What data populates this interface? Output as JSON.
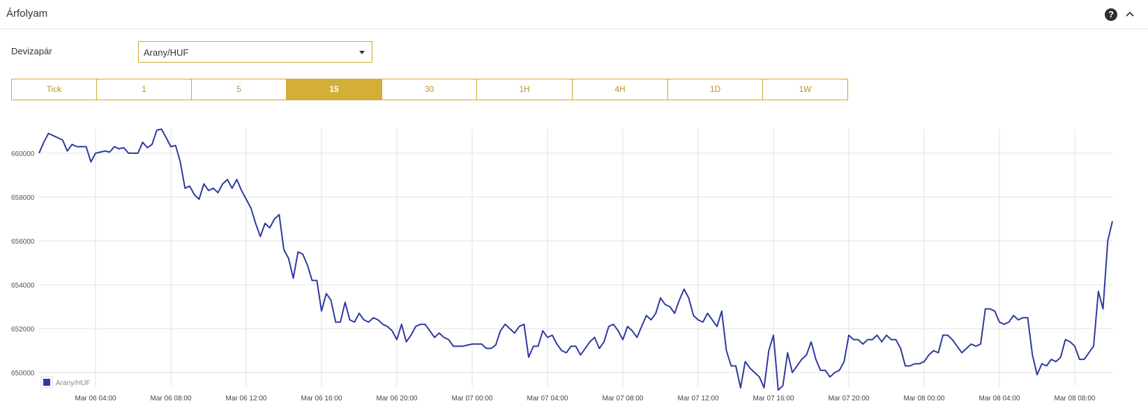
{
  "header": {
    "title": "Árfolyam",
    "help_icon": "help-circle-icon",
    "collapse_icon": "chevron-up-icon"
  },
  "form": {
    "pair_label": "Devizapár",
    "pair_value": "Arany/HUF"
  },
  "timeframes": {
    "items": [
      {
        "label": "Tick",
        "active": false
      },
      {
        "label": "1",
        "active": false
      },
      {
        "label": "5",
        "active": false
      },
      {
        "label": "15",
        "active": true
      },
      {
        "label": "30",
        "active": false
      },
      {
        "label": "1H",
        "active": false
      },
      {
        "label": "4H",
        "active": false
      },
      {
        "label": "1D",
        "active": false
      },
      {
        "label": "1W",
        "active": false
      }
    ]
  },
  "colors": {
    "accent": "#d4af37",
    "line": "#2e3a9e",
    "grid": "#e0e0e0"
  },
  "chart_data": {
    "type": "line",
    "title": "",
    "xlabel": "",
    "ylabel": "",
    "legend": {
      "entry": "Arany/HUF",
      "placement": "bottom-left"
    },
    "grid": true,
    "ylim": [
      649300,
      661400
    ],
    "y_ticks": [
      650000,
      652000,
      654000,
      656000,
      658000,
      660000
    ],
    "x_ticks": [
      {
        "label": "Mar 06 04:00",
        "t": 4
      },
      {
        "label": "Mar 06 08:00",
        "t": 8
      },
      {
        "label": "Mar 06 12:00",
        "t": 12
      },
      {
        "label": "Mar 06 16:00",
        "t": 16
      },
      {
        "label": "Mar 06 20:00",
        "t": 20
      },
      {
        "label": "Mar 07 00:00",
        "t": 24
      },
      {
        "label": "Mar 07 04:00",
        "t": 28
      },
      {
        "label": "Mar 07 08:00",
        "t": 32
      },
      {
        "label": "Mar 07 12:00",
        "t": 36
      },
      {
        "label": "Mar 07 16:00",
        "t": 40
      },
      {
        "label": "Mar 07 20:00",
        "t": 44
      },
      {
        "label": "Mar 08 00:00",
        "t": 48
      },
      {
        "label": "Mar 08 04:00",
        "t": 52
      },
      {
        "label": "Mar 08 08:00",
        "t": 56
      }
    ],
    "x_range": [
      1,
      58
    ],
    "series": [
      {
        "name": "Arany/HUF",
        "points": [
          [
            1.0,
            660000
          ],
          [
            1.25,
            660500
          ],
          [
            1.5,
            660900
          ],
          [
            1.75,
            660800
          ],
          [
            2.0,
            660700
          ],
          [
            2.25,
            660600
          ],
          [
            2.5,
            660100
          ],
          [
            2.75,
            660400
          ],
          [
            3.0,
            660300
          ],
          [
            3.5,
            660300
          ],
          [
            3.75,
            659600
          ],
          [
            4.0,
            660000
          ],
          [
            4.5,
            660100
          ],
          [
            4.75,
            660050
          ],
          [
            5.0,
            660300
          ],
          [
            5.25,
            660200
          ],
          [
            5.5,
            660250
          ],
          [
            5.75,
            660000
          ],
          [
            6.25,
            660000
          ],
          [
            6.5,
            660500
          ],
          [
            6.75,
            660250
          ],
          [
            7.0,
            660400
          ],
          [
            7.25,
            661050
          ],
          [
            7.5,
            661100
          ],
          [
            7.75,
            660700
          ],
          [
            8.0,
            660300
          ],
          [
            8.25,
            660350
          ],
          [
            8.5,
            659600
          ],
          [
            8.75,
            658400
          ],
          [
            9.0,
            658500
          ],
          [
            9.25,
            658100
          ],
          [
            9.5,
            657900
          ],
          [
            9.75,
            658600
          ],
          [
            10.0,
            658300
          ],
          [
            10.25,
            658400
          ],
          [
            10.5,
            658200
          ],
          [
            10.75,
            658600
          ],
          [
            11.0,
            658800
          ],
          [
            11.25,
            658400
          ],
          [
            11.5,
            658800
          ],
          [
            11.75,
            658300
          ],
          [
            12.0,
            657900
          ],
          [
            12.25,
            657500
          ],
          [
            12.5,
            656800
          ],
          [
            12.75,
            656200
          ],
          [
            13.0,
            656800
          ],
          [
            13.25,
            656600
          ],
          [
            13.5,
            657000
          ],
          [
            13.75,
            657200
          ],
          [
            14.0,
            655600
          ],
          [
            14.25,
            655200
          ],
          [
            14.5,
            654300
          ],
          [
            14.75,
            655500
          ],
          [
            15.0,
            655400
          ],
          [
            15.25,
            654900
          ],
          [
            15.5,
            654200
          ],
          [
            15.75,
            654200
          ],
          [
            16.0,
            652800
          ],
          [
            16.25,
            653600
          ],
          [
            16.5,
            653300
          ],
          [
            16.75,
            652300
          ],
          [
            17.0,
            652300
          ],
          [
            17.25,
            653200
          ],
          [
            17.5,
            652400
          ],
          [
            17.75,
            652300
          ],
          [
            18.0,
            652700
          ],
          [
            18.25,
            652400
          ],
          [
            18.5,
            652300
          ],
          [
            18.75,
            652500
          ],
          [
            19.0,
            652400
          ],
          [
            19.25,
            652200
          ],
          [
            19.5,
            652100
          ],
          [
            19.75,
            651900
          ],
          [
            20.0,
            651500
          ],
          [
            20.25,
            652200
          ],
          [
            20.5,
            651400
          ],
          [
            20.75,
            651700
          ],
          [
            21.0,
            652100
          ],
          [
            21.25,
            652200
          ],
          [
            21.5,
            652200
          ],
          [
            21.75,
            651900
          ],
          [
            22.0,
            651600
          ],
          [
            22.25,
            651800
          ],
          [
            22.5,
            651600
          ],
          [
            22.75,
            651500
          ],
          [
            23.0,
            651200
          ],
          [
            23.5,
            651200
          ],
          [
            23.75,
            651250
          ],
          [
            24.0,
            651300
          ],
          [
            24.5,
            651300
          ],
          [
            24.75,
            651100
          ],
          [
            25.0,
            651100
          ],
          [
            25.25,
            651250
          ],
          [
            25.5,
            651900
          ],
          [
            25.75,
            652200
          ],
          [
            26.0,
            652000
          ],
          [
            26.25,
            651800
          ],
          [
            26.5,
            652100
          ],
          [
            26.75,
            652200
          ],
          [
            27.0,
            650700
          ],
          [
            27.25,
            651200
          ],
          [
            27.5,
            651200
          ],
          [
            27.75,
            651900
          ],
          [
            28.0,
            651600
          ],
          [
            28.25,
            651700
          ],
          [
            28.5,
            651300
          ],
          [
            28.75,
            651000
          ],
          [
            29.0,
            650900
          ],
          [
            29.25,
            651200
          ],
          [
            29.5,
            651200
          ],
          [
            29.75,
            650800
          ],
          [
            30.0,
            651100
          ],
          [
            30.25,
            651400
          ],
          [
            30.5,
            651600
          ],
          [
            30.75,
            651100
          ],
          [
            31.0,
            651400
          ],
          [
            31.25,
            652100
          ],
          [
            31.5,
            652200
          ],
          [
            31.75,
            651900
          ],
          [
            32.0,
            651500
          ],
          [
            32.25,
            652100
          ],
          [
            32.5,
            651900
          ],
          [
            32.75,
            651600
          ],
          [
            33.0,
            652100
          ],
          [
            33.25,
            652600
          ],
          [
            33.5,
            652400
          ],
          [
            33.75,
            652700
          ],
          [
            34.0,
            653400
          ],
          [
            34.25,
            653100
          ],
          [
            34.5,
            653000
          ],
          [
            34.75,
            652700
          ],
          [
            35.0,
            653300
          ],
          [
            35.25,
            653800
          ],
          [
            35.5,
            653400
          ],
          [
            35.75,
            652600
          ],
          [
            36.0,
            652400
          ],
          [
            36.25,
            652300
          ],
          [
            36.5,
            652700
          ],
          [
            36.75,
            652400
          ],
          [
            37.0,
            652100
          ],
          [
            37.25,
            652800
          ],
          [
            37.5,
            651000
          ],
          [
            37.75,
            650300
          ],
          [
            38.0,
            650300
          ],
          [
            38.25,
            649300
          ],
          [
            38.5,
            650500
          ],
          [
            38.75,
            650200
          ],
          [
            39.0,
            650000
          ],
          [
            39.25,
            649800
          ],
          [
            39.5,
            649300
          ],
          [
            39.75,
            651000
          ],
          [
            40.0,
            651700
          ],
          [
            40.25,
            649200
          ],
          [
            40.5,
            649400
          ],
          [
            40.75,
            650900
          ],
          [
            41.0,
            650000
          ],
          [
            41.25,
            650300
          ],
          [
            41.5,
            650600
          ],
          [
            41.75,
            650800
          ],
          [
            42.0,
            651400
          ],
          [
            42.25,
            650600
          ],
          [
            42.5,
            650100
          ],
          [
            42.75,
            650100
          ],
          [
            43.0,
            649800
          ],
          [
            43.25,
            650000
          ],
          [
            43.5,
            650100
          ],
          [
            43.75,
            650500
          ],
          [
            44.0,
            651700
          ],
          [
            44.25,
            651500
          ],
          [
            44.5,
            651500
          ],
          [
            44.75,
            651300
          ],
          [
            45.0,
            651500
          ],
          [
            45.25,
            651500
          ],
          [
            45.5,
            651700
          ],
          [
            45.75,
            651400
          ],
          [
            46.0,
            651700
          ],
          [
            46.25,
            651500
          ],
          [
            46.5,
            651500
          ],
          [
            46.75,
            651100
          ],
          [
            47.0,
            650300
          ],
          [
            47.25,
            650300
          ],
          [
            47.5,
            650400
          ],
          [
            47.75,
            650400
          ],
          [
            48.0,
            650500
          ],
          [
            48.25,
            650800
          ],
          [
            48.5,
            651000
          ],
          [
            48.75,
            650900
          ],
          [
            49.0,
            651700
          ],
          [
            49.25,
            651700
          ],
          [
            49.5,
            651500
          ],
          [
            49.75,
            651200
          ],
          [
            50.0,
            650900
          ],
          [
            50.25,
            651100
          ],
          [
            50.5,
            651300
          ],
          [
            50.75,
            651200
          ],
          [
            51.0,
            651300
          ],
          [
            51.25,
            652900
          ],
          [
            51.5,
            652900
          ],
          [
            51.75,
            652800
          ],
          [
            52.0,
            652300
          ],
          [
            52.25,
            652200
          ],
          [
            52.5,
            652300
          ],
          [
            52.75,
            652600
          ],
          [
            53.0,
            652400
          ],
          [
            53.25,
            652500
          ],
          [
            53.5,
            652500
          ],
          [
            53.75,
            650800
          ],
          [
            54.0,
            649900
          ],
          [
            54.25,
            650400
          ],
          [
            54.5,
            650300
          ],
          [
            54.75,
            650600
          ],
          [
            55.0,
            650500
          ],
          [
            55.25,
            650700
          ],
          [
            55.5,
            651500
          ],
          [
            55.75,
            651400
          ],
          [
            56.0,
            651200
          ],
          [
            56.25,
            650600
          ],
          [
            56.5,
            650600
          ],
          [
            56.75,
            650900
          ],
          [
            57.0,
            651200
          ],
          [
            57.25,
            653700
          ],
          [
            57.5,
            652900
          ],
          [
            57.75,
            656000
          ],
          [
            58.0,
            656900
          ]
        ]
      }
    ]
  }
}
